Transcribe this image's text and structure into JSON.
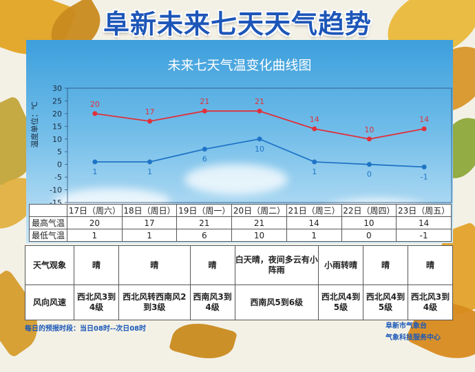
{
  "banner_title": "阜新未来七天天气趋势",
  "chart_data": {
    "type": "line",
    "title": "未来七天气温变化曲线图",
    "ylabel": "温度单位：℃",
    "ylim": [
      -15,
      30
    ],
    "yticks": [
      30,
      25,
      20,
      15,
      10,
      5,
      0,
      -5,
      -10,
      -15
    ],
    "categories": [
      "17日（周六）",
      "18日（周日）",
      "19日（周一）",
      "20日（周二）",
      "21日（周三）",
      "22日（周四）",
      "23日（周五）"
    ],
    "series": [
      {
        "name": "最高气温",
        "color": "#e0303a",
        "values": [
          20,
          17,
          21,
          21,
          14,
          10,
          14
        ]
      },
      {
        "name": "最低气温",
        "color": "#1f74c6",
        "values": [
          1,
          1,
          6,
          10,
          1,
          0,
          -1
        ]
      }
    ],
    "high_labels": [
      "20",
      "17",
      "21",
      "21",
      "14",
      "10",
      "14"
    ],
    "low_labels": [
      "1",
      "1",
      "6",
      "10",
      "1",
      "0",
      "-1"
    ],
    "grid": false
  },
  "weather_row": {
    "label": "天气观象",
    "values": [
      "晴",
      "晴",
      "晴",
      "白天晴，夜间多云有小阵雨",
      "小雨转晴",
      "晴",
      "晴"
    ]
  },
  "wind_row": {
    "label": "风向风速",
    "values": [
      "西北风3到4级",
      "西北风转西南风2到3级",
      "西南风3到4级",
      "西南风5到6级",
      "西北风4到5级",
      "西北风4到5级",
      "西北风3到4级"
    ]
  },
  "footer": {
    "forecast_period": "每日的预报时段：当日08时--次日08时",
    "org_1": "阜新市气象台",
    "org_2": "气象科技服务中心"
  },
  "colors": {
    "title_blue": "#1d56b8",
    "sky_top": "#3d9fdc",
    "sky_bottom": "#c9e6f7",
    "table_bg": "#d5ebfa"
  }
}
